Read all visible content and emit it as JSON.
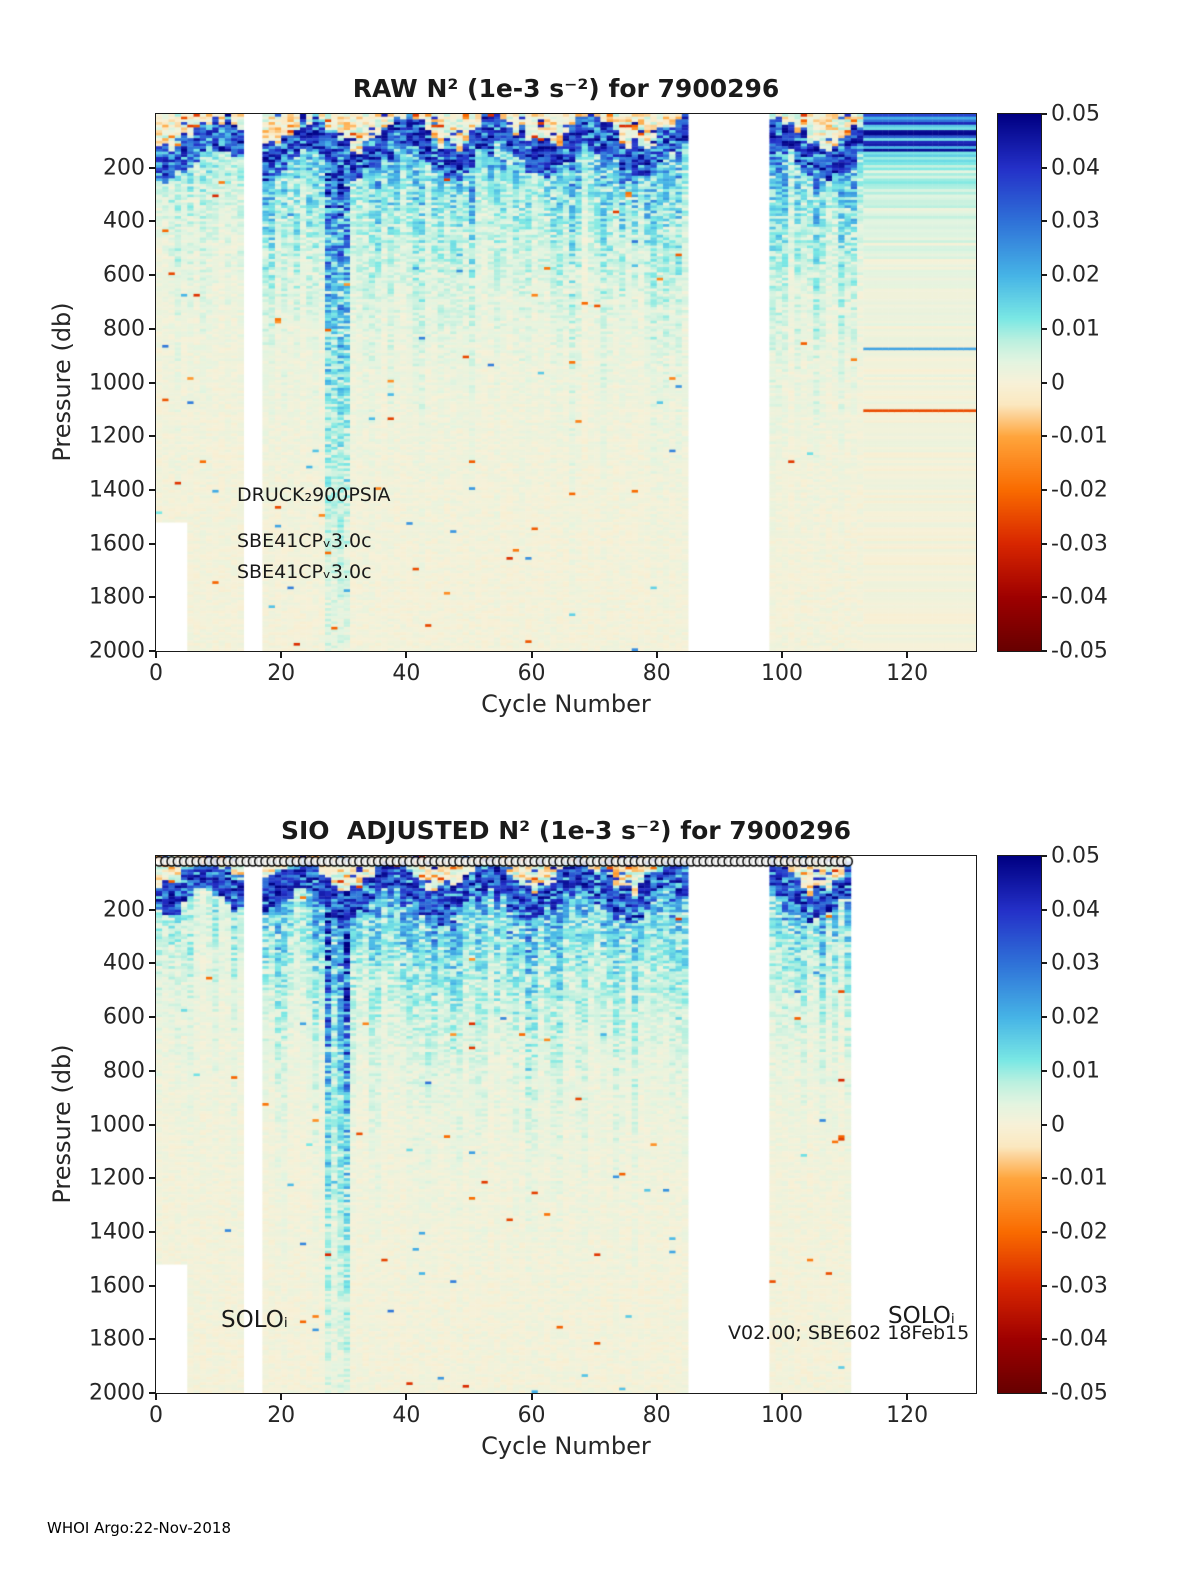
{
  "page": {
    "footer_text": "WHOI Argo:22-Nov-2018",
    "background": "#ffffff"
  },
  "colormap": {
    "stops": [
      [
        -0.05,
        "#670000"
      ],
      [
        -0.04,
        "#9e0000"
      ],
      [
        -0.03,
        "#d82600"
      ],
      [
        -0.02,
        "#f96b00"
      ],
      [
        -0.01,
        "#ffa53c"
      ],
      [
        -0.004,
        "#fbe8c0"
      ],
      [
        0.0,
        "#f7f1d8"
      ],
      [
        0.004,
        "#e3f4e0"
      ],
      [
        0.008,
        "#baf0df"
      ],
      [
        0.012,
        "#7ae8e4"
      ],
      [
        0.02,
        "#46b4e6"
      ],
      [
        0.03,
        "#2f72d8"
      ],
      [
        0.04,
        "#2430c8"
      ],
      [
        0.05,
        "#000082"
      ]
    ]
  },
  "chart_data": [
    {
      "type": "heatmap",
      "title": "RAW N² (1e-3 s⁻²) for 7900296",
      "xlabel": "Cycle Number",
      "ylabel": "Pressure (db)",
      "xlim": [
        0,
        131
      ],
      "ylim": [
        0,
        2000
      ],
      "y_axis_reversed": true,
      "x_ticks": [
        0,
        20,
        40,
        60,
        80,
        100,
        120
      ],
      "y_ticks": [
        200,
        400,
        600,
        800,
        1000,
        1200,
        1400,
        1600,
        1800,
        2000
      ],
      "colorbar": {
        "limits": [
          -0.05,
          0.05
        ],
        "ticks": [
          0.05,
          0.04,
          0.03,
          0.02,
          0.01,
          0,
          -0.01,
          -0.02,
          -0.03,
          -0.04,
          -0.05
        ]
      },
      "annotations": [
        {
          "text": "DRUCK₂900PSIA"
        },
        {
          "text": "SBE41CPᵥ3.0c"
        },
        {
          "text": "SBE41CPᵥ3.0c"
        }
      ],
      "gaps": [
        [
          14,
          16
        ],
        [
          85,
          97
        ]
      ],
      "corner_gap": {
        "max_col": 4,
        "p_min": 1520
      },
      "freeze_after": 113,
      "markers": null,
      "gen": {
        "seed": 7,
        "ncols": 131,
        "nrows": 200,
        "amp": 0.02,
        "quiet_before": 14,
        "streak_cols": [
          27,
          30
        ],
        "phase": 0.8
      }
    },
    {
      "type": "heatmap",
      "title": "SIO  ADJUSTED N² (1e-3 s⁻²) for 7900296",
      "xlabel": "Cycle Number",
      "ylabel": "Pressure (db)",
      "xlim": [
        0,
        131
      ],
      "ylim": [
        0,
        2000
      ],
      "y_axis_reversed": true,
      "x_ticks": [
        0,
        20,
        40,
        60,
        80,
        100,
        120
      ],
      "y_ticks": [
        200,
        400,
        600,
        800,
        1000,
        1200,
        1400,
        1600,
        1800,
        2000
      ],
      "colorbar": {
        "limits": [
          -0.05,
          0.05
        ],
        "ticks": [
          0.05,
          0.04,
          0.03,
          0.02,
          0.01,
          0,
          -0.01,
          -0.02,
          -0.03,
          -0.04,
          -0.05
        ]
      },
      "annotations": [
        {
          "text": "SOLOᵢ"
        },
        {
          "text": "SOLOᵢ"
        },
        {
          "text": "V02.00; SBE602 18Feb15"
        }
      ],
      "gaps": [
        [
          14,
          16
        ],
        [
          85,
          97
        ],
        [
          111,
          130
        ]
      ],
      "corner_gap": {
        "max_col": 4,
        "p_min": 1520
      },
      "freeze_after": null,
      "markers": {
        "cycle_max": 110
      },
      "gen": {
        "seed": 13,
        "ncols": 131,
        "nrows": 200,
        "amp": 0.02,
        "quiet_before": 14,
        "streak_cols": [
          27,
          30
        ],
        "phase": 1.6
      }
    }
  ]
}
